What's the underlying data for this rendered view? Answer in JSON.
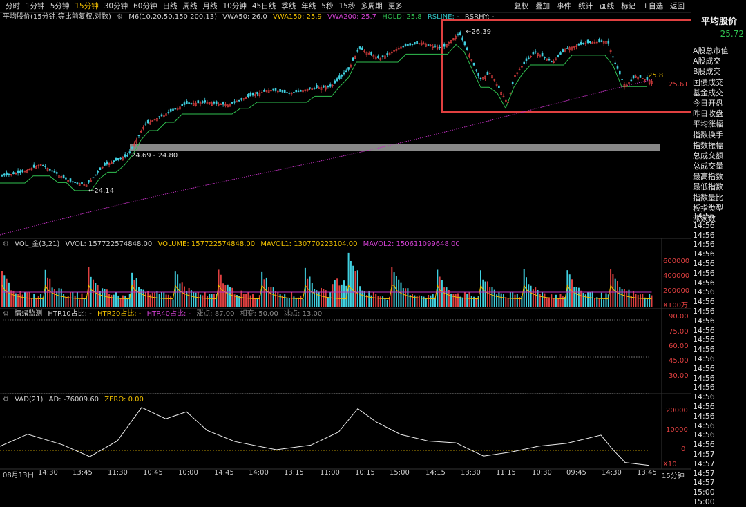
{
  "toolbar": {
    "periods": [
      "分时",
      "1分钟",
      "5分钟",
      "15分钟",
      "30分钟",
      "60分钟",
      "日线",
      "周线",
      "月线",
      "10分钟",
      "45日线",
      "季线",
      "年线",
      "5秒",
      "15秒",
      "多周期",
      "更多"
    ],
    "active_period": "15分钟",
    "tools": [
      "复权",
      "叠加",
      "事件",
      "统计",
      "画线",
      "标记",
      "+自选",
      "返回"
    ]
  },
  "main_chart": {
    "header": {
      "name": "平均股价(15分钟,等比前复权,对数)",
      "m6": "M6(10,20,50,150,200,13)",
      "vwa50": "VWA50: 26.0",
      "vwa150": "VWA150: 25.9",
      "vwa200": "VWA200: 25.7",
      "hold": "HOLD: 25.8",
      "rsline": "RSLINE: -",
      "rsrhy": "RSRHY: -"
    },
    "annotations": {
      "high": "26.39",
      "low": "24.14",
      "gap_range": "24.69 - 24.80",
      "current": "25.61",
      "current_right": "25.8"
    }
  },
  "vol": {
    "header": {
      "name": "VOL_金(3,21)",
      "vvol": "VVOL: 157722574848.00",
      "volume": "VOLUME: 157722574848.00",
      "mavol1": "MAVOL1: 130770223104.00",
      "mavol2": "MAVOL2: 150611099648.00"
    },
    "axis": [
      "600000",
      "400000",
      "200000"
    ],
    "unit": "X100万"
  },
  "htr": {
    "header": {
      "name": "情绪监测",
      "htr10": "HTR10占比: -",
      "htr20": "HTR20占比: -",
      "htr40": "HTR40占比: -",
      "up": "涨点: 87.00",
      "mid": "相变: 50.00",
      "down": "冰点: 13.00"
    },
    "axis": [
      "90.00",
      "75.00",
      "60.00",
      "45.00",
      "30.00"
    ]
  },
  "vad": {
    "header": {
      "name": "VAD(21)",
      "ad": "AD: -76009.60",
      "zero": "ZERO: 0.00"
    },
    "axis": [
      "20000",
      "10000",
      "0"
    ],
    "unit": "X10"
  },
  "xaxis": {
    "labels": [
      "08月13日",
      "14:30",
      "13:45",
      "11:30",
      "10:45",
      "10:00",
      "14:45",
      "14:00",
      "13:15",
      "11:00",
      "10:15",
      "15:00",
      "14:15",
      "13:30",
      "11:15",
      "10:30",
      "09:45",
      "14:30",
      "13:45"
    ],
    "period": "15分钟"
  },
  "panel": {
    "title": "平均股价",
    "price": "25.72",
    "items": [
      "A股总市值",
      "A股成交",
      "B股成交",
      "国债成交",
      "基金成交",
      "今日开盘",
      "昨日收盘",
      "平均涨幅",
      "指数换手",
      "指数振幅",
      "总成交额",
      "总成交量",
      "最高指数",
      "最低指数",
      "指数量比",
      "板指类型",
      "涨家数"
    ],
    "times": [
      "14:55",
      "14:56",
      "14:56",
      "14:56",
      "14:56",
      "14:56",
      "14:56",
      "14:56",
      "14:56",
      "14:56",
      "14:56",
      "14:56",
      "14:56",
      "14:56",
      "14:56",
      "14:56",
      "14:56",
      "14:56",
      "14:56",
      "14:56",
      "14:56",
      "14:56",
      "14:56",
      "14:56",
      "14:56",
      "14:57",
      "14:57",
      "14:57",
      "14:57",
      "15:00",
      "15:00"
    ]
  },
  "colors": {
    "up": "#e04040",
    "down": "#40d0e0",
    "hold": "#30c050",
    "vwa200": "#c030c0",
    "highlight": "#e04040"
  }
}
